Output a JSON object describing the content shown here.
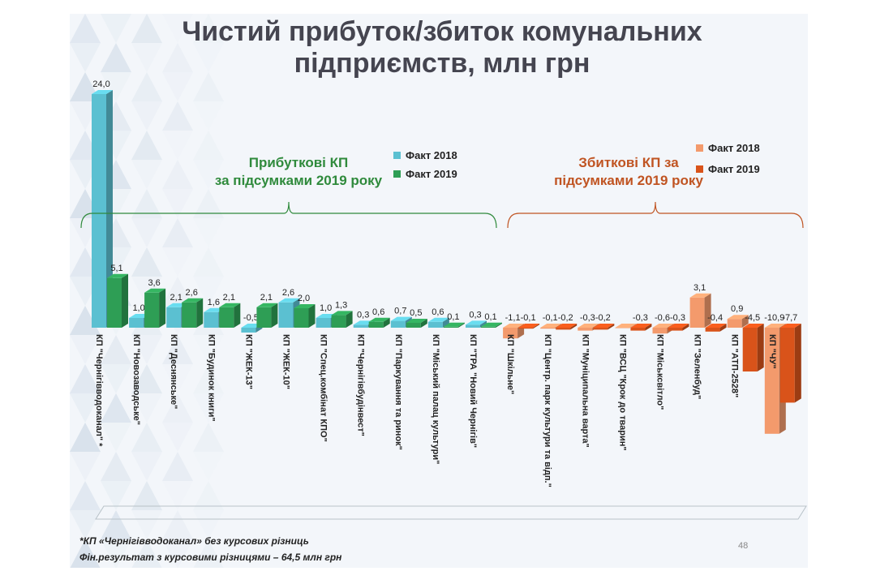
{
  "title": "Чистий прибуток/збиток комунальних підприємств, млн грн",
  "groups": {
    "profit_label_line1": "Прибуткові  КП",
    "profit_label_line2": "за підсумками 2019 року",
    "loss_label_line1": "Збиткові  КП за",
    "loss_label_line2": "підсумками 2019 року"
  },
  "legend_profit": [
    {
      "label": "Факт 2018",
      "color": "#5bc0d1"
    },
    {
      "label": "Факт 2019",
      "color": "#2e9e55"
    }
  ],
  "legend_loss": [
    {
      "label": "Факт 2018",
      "color": "#f39a6c"
    },
    {
      "label": "Факт 2019",
      "color": "#d9531a"
    }
  ],
  "footnotes": {
    "line1": "*КП «Чернігівводоканал»  без курсових різниць",
    "line2": "Фін.результат з курсовими різницями – 64,5 млн грн"
  },
  "page_number": "48",
  "chart_data": {
    "type": "bar",
    "categories": [
      "КП \"Чернігівводоканал\" *",
      "КП \"Новозаводське\"",
      "КП \"Деснянське\"",
      "КП \"Будинок книги\"",
      "КП \"ЖЕК-13\"",
      "КП \"ЖЕК-10\"",
      "КП \"Спец.комбінат КПО\"",
      "КП \"Чернігівбудінвест\"",
      "КП \"Паркування та ринок\"",
      "КП \"Міський палац культури\"",
      "КП \"ТРА \"Новий Чернігів\"",
      "КП \"Шкільне\"",
      "КП \"Центр. парк культури та відп.\"",
      "КП \"Муніципальна варта\"",
      "КП \"ВСЦ \"Крок до тварин\"",
      "КП \"Міськсвітло\"",
      "КП \"Зеленбуд\"",
      "КП \"АТП-2528\"",
      "КП \"ЧУ\""
    ],
    "series": [
      {
        "name": "Факт 2018",
        "values": [
          24.0,
          1.0,
          2.1,
          1.6,
          -0.5,
          2.6,
          1.0,
          0.3,
          0.7,
          0.6,
          0.3,
          -1.1,
          -0.1,
          -0.3,
          0.0,
          -0.6,
          3.1,
          0.9,
          -10.9
        ]
      },
      {
        "name": "Факт 2019",
        "values": [
          5.1,
          3.6,
          2.6,
          2.1,
          2.1,
          2.0,
          1.3,
          0.6,
          0.5,
          0.1,
          0.1,
          -0.1,
          -0.2,
          -0.2,
          -0.3,
          -0.3,
          -0.4,
          -4.5,
          -7.7
        ]
      }
    ],
    "value_labels_2018": [
      "24,0",
      "1,0",
      "2,1",
      "1,6",
      "-0,5",
      "2,6",
      "1,0",
      "0,3",
      "0,7",
      "0,6",
      "0,3",
      "-1,1",
      "-0,1",
      "-0,3",
      "",
      "-0,6",
      "3,1",
      "0,9",
      "-10,9"
    ],
    "value_labels_2019": [
      "5,1",
      "3,6",
      "2,6",
      "2,1",
      "2,1",
      "2,0",
      "1,3",
      "0,6",
      "0,5",
      "0,1",
      "0,1",
      "-0,1",
      "-0,2",
      "-0,2",
      "-0,3",
      "-0,3",
      "-0,4",
      "-4,5",
      "-7,7"
    ],
    "profit_count": 11,
    "colors": {
      "profit_2018": "#5bc0d1",
      "profit_2019": "#2e9e55",
      "loss_2018": "#f39a6c",
      "loss_2019": "#d9531a"
    },
    "xlabel": "",
    "ylabel": "",
    "grid": false,
    "legend": "top"
  }
}
